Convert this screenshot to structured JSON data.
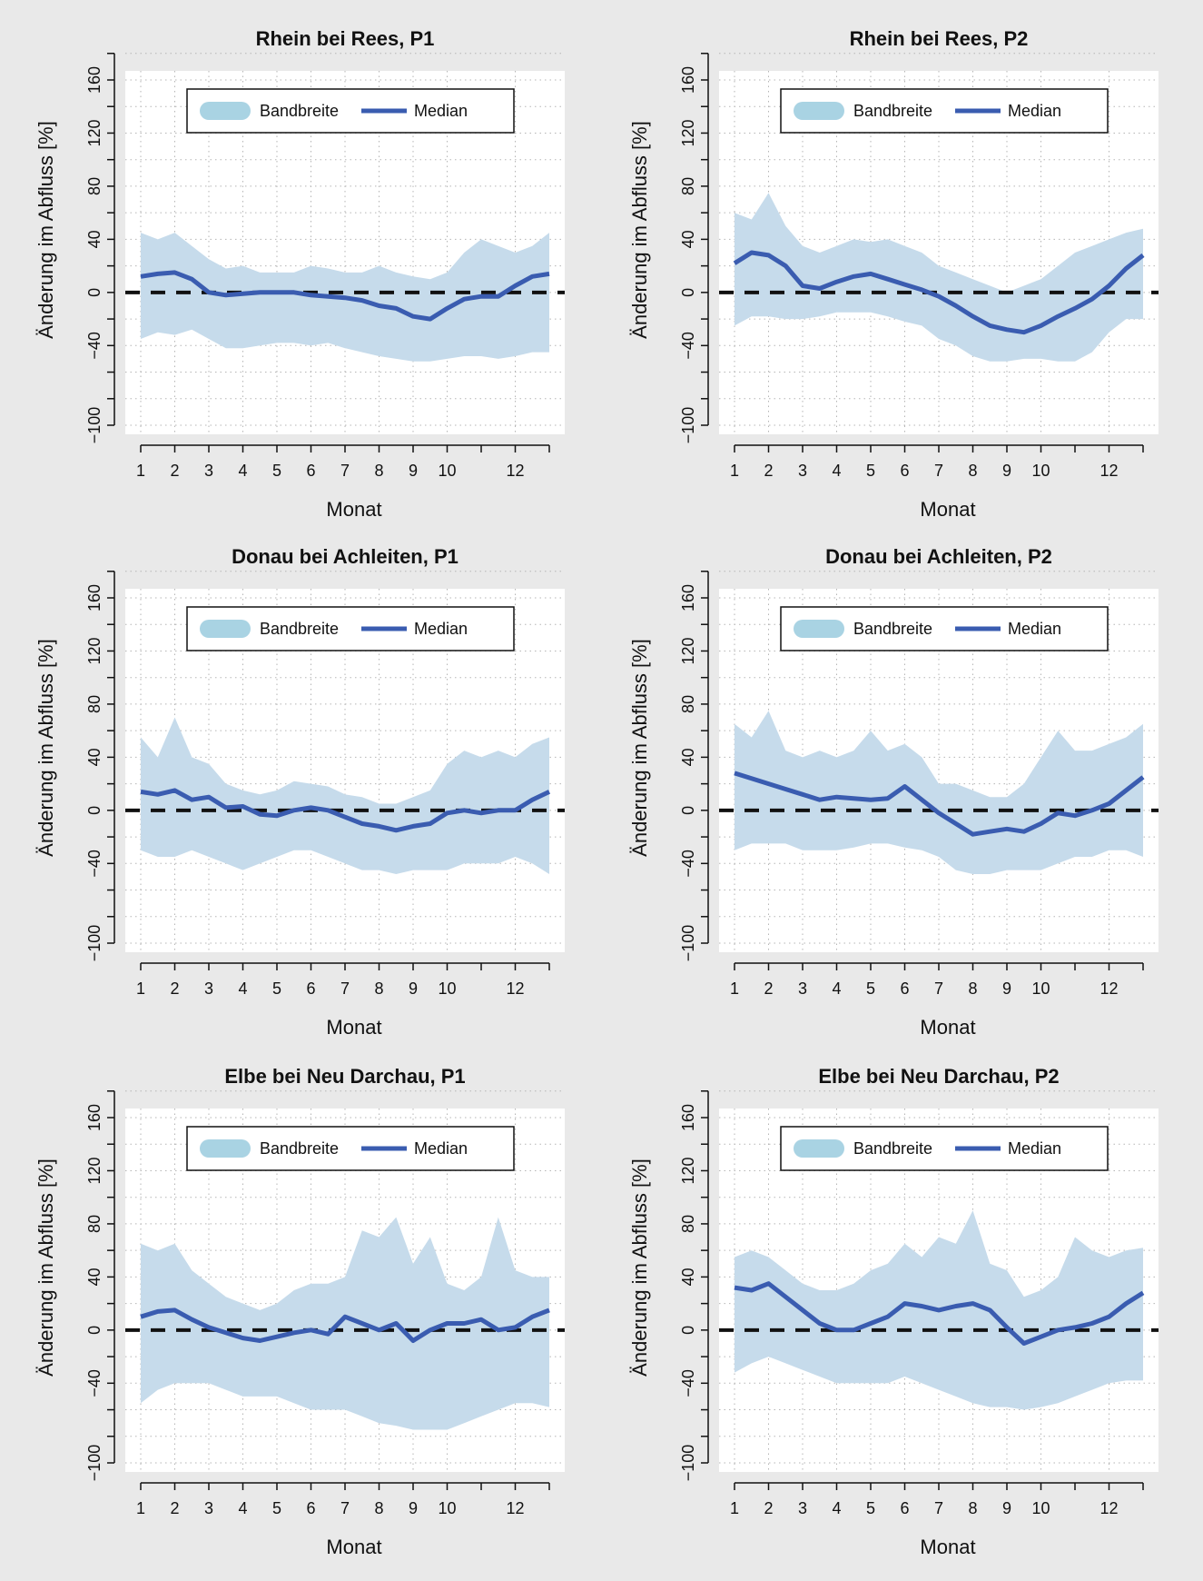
{
  "shared": {
    "xlabel": "Monat",
    "ylabel": "Änderung im Abfluss [%]",
    "x_ticks": [
      1,
      2,
      3,
      4,
      5,
      6,
      7,
      8,
      9,
      10,
      12
    ],
    "y_ticks": [
      -100,
      -40,
      0,
      40,
      80,
      120,
      160
    ],
    "y_tick_labels": [
      "−100",
      "−40",
      "0",
      "40",
      "80",
      "120",
      "160"
    ],
    "xlim": [
      1,
      13
    ],
    "ylim": [
      -100,
      160
    ],
    "colors": {
      "band": "#c6dbeb",
      "median": "#3a5cb0",
      "background": "#e9e9e9",
      "legend_band": "#a9d3e3"
    }
  },
  "chart_data": [
    {
      "type": "area",
      "title": "Rhein bei Rees, P1",
      "legend": {
        "band_label": "Bandbreite",
        "median_label": "Median",
        "position": "top"
      },
      "x": [
        1,
        1.5,
        2,
        2.5,
        3,
        3.5,
        4,
        4.5,
        5,
        5.5,
        6,
        6.5,
        7,
        7.5,
        8,
        8.5,
        9,
        9.5,
        10,
        10.5,
        11,
        11.5,
        12,
        12.5,
        13
      ],
      "series": [
        {
          "name": "Median",
          "values": [
            12,
            14,
            15,
            10,
            0,
            -2,
            -1,
            0,
            0,
            0,
            -2,
            -3,
            -4,
            -6,
            -10,
            -12,
            -18,
            -20,
            -12,
            -5,
            -3,
            -3,
            5,
            12,
            14
          ]
        },
        {
          "name": "Bandbreite",
          "lower": [
            -35,
            -30,
            -32,
            -28,
            -35,
            -42,
            -42,
            -40,
            -38,
            -38,
            -40,
            -38,
            -42,
            -45,
            -48,
            -50,
            -52,
            -52,
            -50,
            -48,
            -48,
            -50,
            -48,
            -45,
            -45
          ],
          "upper": [
            45,
            40,
            45,
            35,
            25,
            18,
            20,
            15,
            15,
            15,
            20,
            18,
            15,
            15,
            20,
            15,
            12,
            10,
            15,
            30,
            40,
            35,
            30,
            35,
            45
          ]
        }
      ]
    },
    {
      "type": "area",
      "title": "Rhein bei Rees, P2",
      "legend": {
        "band_label": "Bandbreite",
        "median_label": "Median",
        "position": "top"
      },
      "x": [
        1,
        1.5,
        2,
        2.5,
        3,
        3.5,
        4,
        4.5,
        5,
        5.5,
        6,
        6.5,
        7,
        7.5,
        8,
        8.5,
        9,
        9.5,
        10,
        10.5,
        11,
        11.5,
        12,
        12.5,
        13
      ],
      "series": [
        {
          "name": "Median",
          "values": [
            22,
            30,
            28,
            20,
            5,
            3,
            8,
            12,
            14,
            10,
            6,
            2,
            -3,
            -10,
            -18,
            -25,
            -28,
            -30,
            -25,
            -18,
            -12,
            -5,
            5,
            18,
            28
          ]
        },
        {
          "name": "Bandbreite",
          "lower": [
            -25,
            -18,
            -18,
            -20,
            -20,
            -18,
            -15,
            -15,
            -15,
            -18,
            -22,
            -25,
            -35,
            -40,
            -48,
            -52,
            -52,
            -50,
            -50,
            -52,
            -52,
            -45,
            -30,
            -20,
            -20
          ],
          "upper": [
            60,
            55,
            75,
            50,
            35,
            30,
            35,
            40,
            38,
            40,
            35,
            30,
            20,
            15,
            10,
            5,
            0,
            5,
            10,
            20,
            30,
            35,
            40,
            45,
            48
          ]
        }
      ]
    },
    {
      "type": "area",
      "title": "Donau bei Achleiten, P1",
      "legend": {
        "band_label": "Bandbreite",
        "median_label": "Median",
        "position": "top"
      },
      "x": [
        1,
        1.5,
        2,
        2.5,
        3,
        3.5,
        4,
        4.5,
        5,
        5.5,
        6,
        6.5,
        7,
        7.5,
        8,
        8.5,
        9,
        9.5,
        10,
        10.5,
        11,
        11.5,
        12,
        12.5,
        13
      ],
      "series": [
        {
          "name": "Median",
          "values": [
            14,
            12,
            15,
            8,
            10,
            2,
            3,
            -3,
            -4,
            0,
            2,
            0,
            -5,
            -10,
            -12,
            -15,
            -12,
            -10,
            -2,
            0,
            -2,
            0,
            0,
            8,
            14
          ]
        },
        {
          "name": "Bandbreite",
          "lower": [
            -30,
            -35,
            -35,
            -30,
            -35,
            -40,
            -45,
            -40,
            -35,
            -30,
            -30,
            -35,
            -40,
            -45,
            -45,
            -48,
            -45,
            -45,
            -45,
            -40,
            -40,
            -40,
            -35,
            -40,
            -48
          ],
          "upper": [
            55,
            40,
            70,
            40,
            35,
            20,
            15,
            12,
            15,
            22,
            20,
            18,
            12,
            10,
            5,
            5,
            10,
            15,
            35,
            45,
            40,
            45,
            40,
            50,
            55
          ]
        }
      ]
    },
    {
      "type": "area",
      "title": "Donau bei Achleiten, P2",
      "legend": {
        "band_label": "Bandbreite",
        "median_label": "Median",
        "position": "top"
      },
      "x": [
        1,
        1.5,
        2,
        2.5,
        3,
        3.5,
        4,
        4.5,
        5,
        5.5,
        6,
        6.5,
        7,
        7.5,
        8,
        8.5,
        9,
        9.5,
        10,
        10.5,
        11,
        11.5,
        12,
        12.5,
        13
      ],
      "series": [
        {
          "name": "Median",
          "values": [
            28,
            24,
            20,
            16,
            12,
            8,
            10,
            9,
            8,
            9,
            18,
            8,
            -2,
            -10,
            -18,
            -16,
            -14,
            -16,
            -10,
            -2,
            -4,
            0,
            5,
            15,
            25
          ]
        },
        {
          "name": "Bandbreite",
          "lower": [
            -30,
            -25,
            -25,
            -25,
            -30,
            -30,
            -30,
            -28,
            -25,
            -25,
            -28,
            -30,
            -35,
            -45,
            -48,
            -48,
            -45,
            -45,
            -45,
            -40,
            -35,
            -35,
            -30,
            -30,
            -35
          ],
          "upper": [
            65,
            55,
            75,
            45,
            40,
            45,
            40,
            45,
            60,
            45,
            50,
            40,
            20,
            20,
            15,
            10,
            10,
            20,
            40,
            60,
            45,
            45,
            50,
            55,
            65
          ]
        }
      ]
    },
    {
      "type": "area",
      "title": "Elbe bei Neu Darchau, P1",
      "legend": {
        "band_label": "Bandbreite",
        "median_label": "Median",
        "position": "top"
      },
      "x": [
        1,
        1.5,
        2,
        2.5,
        3,
        3.5,
        4,
        4.5,
        5,
        5.5,
        6,
        6.5,
        7,
        7.5,
        8,
        8.5,
        9,
        9.5,
        10,
        10.5,
        11,
        11.5,
        12,
        12.5,
        13
      ],
      "series": [
        {
          "name": "Median",
          "values": [
            10,
            14,
            15,
            8,
            2,
            -2,
            -6,
            -8,
            -5,
            -2,
            0,
            -3,
            10,
            5,
            0,
            5,
            -8,
            0,
            5,
            5,
            8,
            0,
            2,
            10,
            15
          ]
        },
        {
          "name": "Bandbreite",
          "lower": [
            -55,
            -45,
            -40,
            -40,
            -40,
            -45,
            -50,
            -50,
            -50,
            -55,
            -60,
            -60,
            -60,
            -65,
            -70,
            -72,
            -75,
            -75,
            -75,
            -70,
            -65,
            -60,
            -55,
            -55,
            -58
          ],
          "upper": [
            65,
            60,
            65,
            45,
            35,
            25,
            20,
            15,
            20,
            30,
            35,
            35,
            40,
            75,
            70,
            85,
            50,
            70,
            35,
            30,
            40,
            85,
            45,
            40,
            40
          ]
        }
      ]
    },
    {
      "type": "area",
      "title": "Elbe bei Neu Darchau, P2",
      "legend": {
        "band_label": "Bandbreite",
        "median_label": "Median",
        "position": "top"
      },
      "x": [
        1,
        1.5,
        2,
        2.5,
        3,
        3.5,
        4,
        4.5,
        5,
        5.5,
        6,
        6.5,
        7,
        7.5,
        8,
        8.5,
        9,
        9.5,
        10,
        10.5,
        11,
        11.5,
        12,
        12.5,
        13
      ],
      "series": [
        {
          "name": "Median",
          "values": [
            32,
            30,
            35,
            25,
            15,
            5,
            0,
            0,
            5,
            10,
            20,
            18,
            15,
            18,
            20,
            15,
            2,
            -10,
            -5,
            0,
            2,
            5,
            10,
            20,
            28
          ]
        },
        {
          "name": "Bandbreite",
          "lower": [
            -32,
            -25,
            -20,
            -25,
            -30,
            -35,
            -40,
            -40,
            -40,
            -40,
            -35,
            -40,
            -45,
            -50,
            -55,
            -58,
            -58,
            -60,
            -58,
            -55,
            -50,
            -45,
            -40,
            -38,
            -38
          ],
          "upper": [
            55,
            60,
            55,
            45,
            35,
            30,
            30,
            35,
            45,
            50,
            65,
            55,
            70,
            65,
            90,
            50,
            45,
            25,
            30,
            40,
            70,
            60,
            55,
            60,
            62
          ]
        }
      ]
    }
  ]
}
